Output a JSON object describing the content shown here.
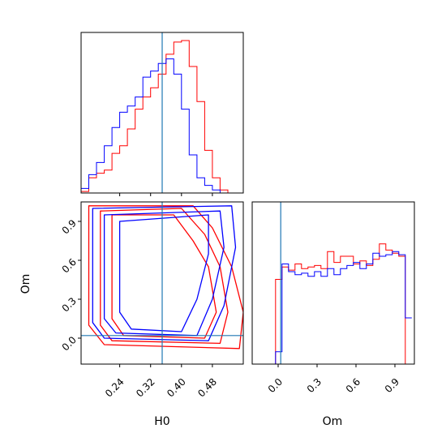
{
  "chart_data": [
    {
      "panel": "H0 histogram",
      "type": "histogram",
      "x_range": [
        0.14,
        0.56
      ],
      "x_ticks": [
        0.24,
        0.32,
        0.4,
        0.48
      ],
      "y_ticks": [],
      "truth_line": {
        "x": 0.35,
        "color": "#1f77b4"
      },
      "series": [
        {
          "color": "#ff0000",
          "edges_start": 0.14,
          "bin_width": 0.02,
          "values": [
            0.01,
            0.1,
            0.13,
            0.15,
            0.26,
            0.31,
            0.42,
            0.55,
            0.63,
            0.69,
            0.78,
            0.91,
            0.99,
            1.0,
            0.83,
            0.6,
            0.28,
            0.1,
            0.02,
            0.0,
            0.0
          ]
        },
        {
          "color": "#0000ff",
          "edges_start": 0.14,
          "bin_width": 0.02,
          "values": [
            0.03,
            0.12,
            0.2,
            0.31,
            0.43,
            0.53,
            0.57,
            0.63,
            0.76,
            0.8,
            0.85,
            0.88,
            0.78,
            0.55,
            0.25,
            0.1,
            0.05,
            0.02,
            0.0,
            0.0,
            0.0
          ]
        }
      ]
    },
    {
      "panel": "H0 vs Om contours",
      "type": "contour",
      "x_range": [
        0.14,
        0.56
      ],
      "y_range": [
        -0.2,
        1.05
      ],
      "x_ticks": [
        "0.24",
        "0.32",
        "0.40",
        "0.48"
      ],
      "y_ticks": [
        "0.0",
        "0.3",
        "0.6",
        "0.9"
      ],
      "xlabel": "H0",
      "ylabel": "Om",
      "truth": {
        "x": 0.35,
        "y": 0.02,
        "color": "#1f77b4"
      },
      "series": [
        {
          "color": "#ff0000",
          "levels": [
            [
              [
                0.16,
                1.02
              ],
              [
                0.43,
                1.02
              ],
              [
                0.48,
                0.85
              ],
              [
                0.53,
                0.55
              ],
              [
                0.56,
                0.2
              ],
              [
                0.55,
                -0.08
              ],
              [
                0.2,
                -0.05
              ],
              [
                0.16,
                0.1
              ],
              [
                0.16,
                1.02
              ]
            ],
            [
              [
                0.19,
                0.98
              ],
              [
                0.4,
                1.0
              ],
              [
                0.46,
                0.8
              ],
              [
                0.5,
                0.55
              ],
              [
                0.52,
                0.2
              ],
              [
                0.5,
                -0.04
              ],
              [
                0.22,
                -0.02
              ],
              [
                0.19,
                0.1
              ],
              [
                0.19,
                0.98
              ]
            ],
            [
              [
                0.22,
                0.95
              ],
              [
                0.38,
                0.95
              ],
              [
                0.43,
                0.75
              ],
              [
                0.47,
                0.55
              ],
              [
                0.49,
                0.2
              ],
              [
                0.46,
                0.0
              ],
              [
                0.25,
                0.02
              ],
              [
                0.22,
                0.15
              ],
              [
                0.22,
                0.95
              ]
            ]
          ]
        },
        {
          "color": "#0000ff",
          "levels": [
            [
              [
                0.17,
                1.0
              ],
              [
                0.53,
                1.02
              ],
              [
                0.54,
                0.7
              ],
              [
                0.51,
                0.25
              ],
              [
                0.47,
                -0.02
              ],
              [
                0.2,
                0.0
              ],
              [
                0.17,
                0.12
              ],
              [
                0.17,
                1.0
              ]
            ],
            [
              [
                0.2,
                0.95
              ],
              [
                0.5,
                0.98
              ],
              [
                0.51,
                0.7
              ],
              [
                0.48,
                0.3
              ],
              [
                0.44,
                0.02
              ],
              [
                0.23,
                0.04
              ],
              [
                0.2,
                0.15
              ],
              [
                0.2,
                0.95
              ]
            ],
            [
              [
                0.24,
                0.9
              ],
              [
                0.47,
                0.95
              ],
              [
                0.47,
                0.65
              ],
              [
                0.44,
                0.3
              ],
              [
                0.4,
                0.05
              ],
              [
                0.27,
                0.07
              ],
              [
                0.24,
                0.2
              ],
              [
                0.24,
                0.9
              ]
            ]
          ]
        }
      ]
    },
    {
      "panel": "Om histogram",
      "type": "histogram",
      "x_range": [
        -0.2,
        1.05
      ],
      "x_ticks": [
        "0.0",
        "0.3",
        "0.6",
        "0.9"
      ],
      "xlabel": "Om",
      "truth_line": {
        "x": 0.02,
        "color": "#1f77b4"
      },
      "series": [
        {
          "color": "#ff0000",
          "edges_start": -0.02,
          "bin_width": 0.05,
          "values": [
            0.55,
            0.63,
            0.61,
            0.65,
            0.62,
            0.63,
            0.64,
            0.62,
            0.73,
            0.66,
            0.7,
            0.7,
            0.65,
            0.67,
            0.64,
            0.68,
            0.78,
            0.74,
            0.72,
            0.7,
            0.0
          ]
        },
        {
          "color": "#0000ff",
          "edges_start": -0.02,
          "bin_width": 0.05,
          "values": [
            0.08,
            0.65,
            0.6,
            0.58,
            0.59,
            0.57,
            0.6,
            0.57,
            0.62,
            0.58,
            0.62,
            0.64,
            0.66,
            0.62,
            0.65,
            0.72,
            0.7,
            0.71,
            0.73,
            0.71,
            0.3
          ]
        }
      ]
    }
  ]
}
